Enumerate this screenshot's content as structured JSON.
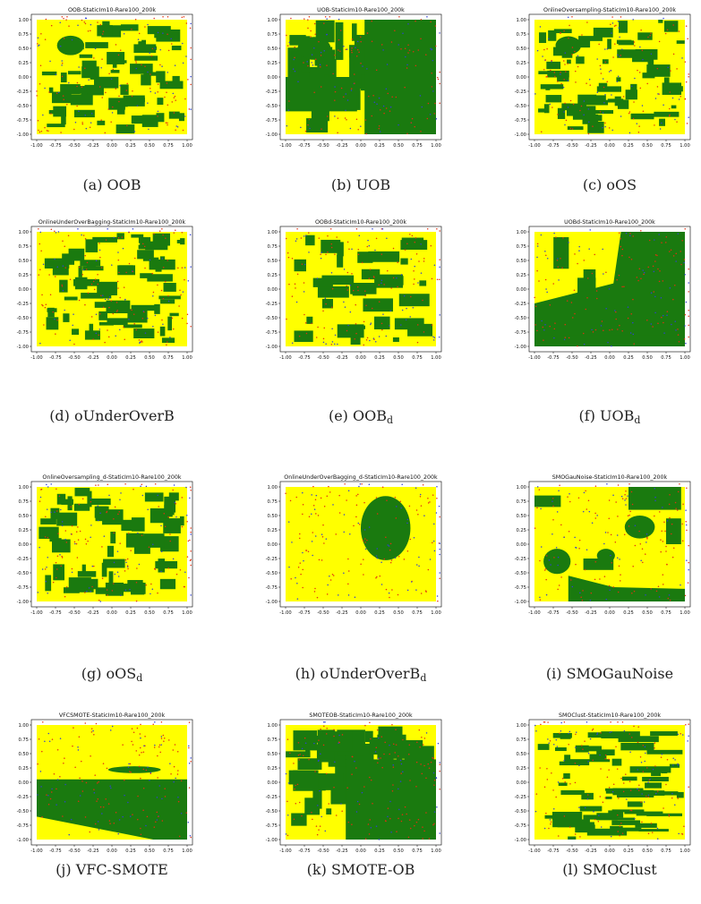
{
  "figure": {
    "colors": {
      "majority_region": "#ffff00",
      "minority_region": "#1a7a0f",
      "majority_points": "#e03010",
      "minority_points": "#3040d0"
    },
    "tick_labels": [
      "-1.00",
      "-0.75",
      "-0.50",
      "-0.25",
      "0.00",
      "0.25",
      "0.50",
      "0.75",
      "1.00"
    ]
  },
  "chart_data": [
    {
      "type": "scatter",
      "title": "OOB-StaticIm10-Rare100_200k",
      "caption_label": "(a)",
      "caption": "OOB",
      "xlim": [
        -1,
        1
      ],
      "ylim": [
        -1,
        1
      ],
      "grid": false
    },
    {
      "type": "scatter",
      "title": "UOB-StaticIm10-Rare100_200k",
      "caption_label": "(b)",
      "caption": "UOB",
      "xlim": [
        -1,
        1
      ],
      "ylim": [
        -1,
        1
      ],
      "grid": false
    },
    {
      "type": "scatter",
      "title": "OnlineOversampling-StaticIm10-Rare100_200k",
      "caption_label": "(c)",
      "caption": "oOS",
      "xlim": [
        -1,
        1
      ],
      "ylim": [
        -1,
        1
      ],
      "grid": false
    },
    {
      "type": "scatter",
      "title": "OnlineUnderOverBagging-StaticIm10-Rare100_200k",
      "caption_label": "(d)",
      "caption": "oUnderOverB",
      "xlim": [
        -1,
        1
      ],
      "ylim": [
        -1,
        1
      ],
      "grid": false
    },
    {
      "type": "scatter",
      "title": "OOBd-StaticIm10-Rare100_200k",
      "caption_label": "(e)",
      "caption": "OOB",
      "caption_sub": "d",
      "xlim": [
        -1,
        1
      ],
      "ylim": [
        -1,
        1
      ],
      "grid": false
    },
    {
      "type": "scatter",
      "title": "UOBd-StaticIm10-Rare100_200k",
      "caption_label": "(f)",
      "caption": "UOB",
      "caption_sub": "d",
      "xlim": [
        -1,
        1
      ],
      "ylim": [
        -1,
        1
      ],
      "grid": false
    },
    {
      "type": "scatter",
      "title": "OnlineOversampling_d-StaticIm10-Rare100_200k",
      "caption_label": "(g)",
      "caption": "oOS",
      "caption_sub": "d",
      "xlim": [
        -1,
        1
      ],
      "ylim": [
        -1,
        1
      ],
      "grid": false
    },
    {
      "type": "scatter",
      "title": "OnlineUnderOverBagging_d-StaticIm10-Rare100_200k",
      "caption_label": "(h)",
      "caption": "oUnderOverB",
      "caption_sub": "d",
      "xlim": [
        -1,
        1
      ],
      "ylim": [
        -1,
        1
      ],
      "grid": false
    },
    {
      "type": "scatter",
      "title": "SMOGauNoise-StaticIm10-Rare100_200k",
      "caption_label": "(i)",
      "caption": "SMOGauNoise",
      "xlim": [
        -1,
        1
      ],
      "ylim": [
        -1,
        1
      ],
      "grid": false
    },
    {
      "type": "scatter",
      "title": "VFCSMOTE-StaticIm10-Rare100_200k",
      "caption_label": "(j)",
      "caption": "VFC-SMOTE",
      "xlim": [
        -1,
        1
      ],
      "ylim": [
        -1,
        1
      ],
      "grid": false
    },
    {
      "type": "scatter",
      "title": "SMOTEOB-StaticIm10-Rare100_200k",
      "caption_label": "(k)",
      "caption": "SMOTE-OB",
      "xlim": [
        -1,
        1
      ],
      "ylim": [
        -1,
        1
      ],
      "grid": false
    },
    {
      "type": "scatter",
      "title": "SMOClust-StaticIm10-Rare100_200k",
      "caption_label": "(l)",
      "caption": "SMOClust",
      "xlim": [
        -1,
        1
      ],
      "ylim": [
        -1,
        1
      ],
      "grid": false
    }
  ]
}
